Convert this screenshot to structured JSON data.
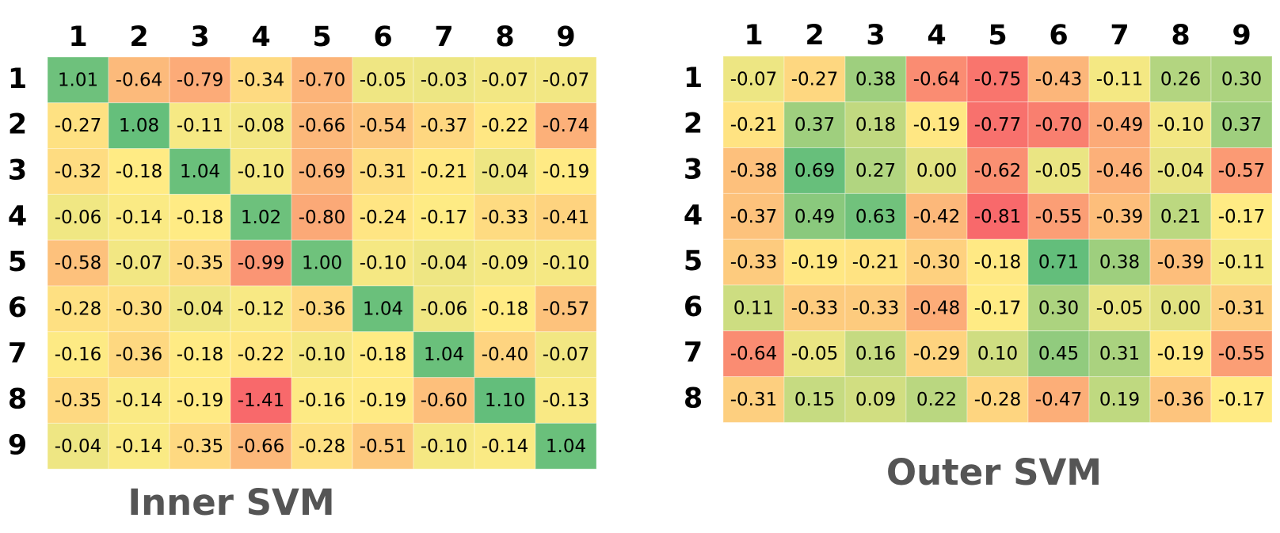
{
  "chart_data": [
    {
      "type": "heatmap",
      "title": "Inner SVM",
      "columns": [
        "1",
        "2",
        "3",
        "4",
        "5",
        "6",
        "7",
        "8",
        "9"
      ],
      "rows": [
        "1",
        "2",
        "3",
        "4",
        "5",
        "6",
        "7",
        "8",
        "9"
      ],
      "values": [
        [
          "1.01",
          "-0.64",
          "-0.79",
          "-0.34",
          "-0.70",
          "-0.05",
          "-0.03",
          "-0.07",
          "-0.07"
        ],
        [
          "-0.27",
          "1.08",
          "-0.11",
          "-0.08",
          "-0.66",
          "-0.54",
          "-0.37",
          "-0.22",
          "-0.74"
        ],
        [
          "-0.32",
          "-0.18",
          "1.04",
          "-0.10",
          "-0.69",
          "-0.31",
          "-0.21",
          "-0.04",
          "-0.19"
        ],
        [
          "-0.06",
          "-0.14",
          "-0.18",
          "1.02",
          "-0.80",
          "-0.24",
          "-0.17",
          "-0.33",
          "-0.41"
        ],
        [
          "-0.58",
          "-0.07",
          "-0.35",
          "-0.99",
          "1.00",
          "-0.10",
          "-0.04",
          "-0.09",
          "-0.10"
        ],
        [
          "-0.28",
          "-0.30",
          "-0.04",
          "-0.12",
          "-0.36",
          "1.04",
          "-0.06",
          "-0.18",
          "-0.57"
        ],
        [
          "-0.16",
          "-0.36",
          "-0.18",
          "-0.22",
          "-0.10",
          "-0.18",
          "1.04",
          "-0.40",
          "-0.07"
        ],
        [
          "-0.35",
          "-0.14",
          "-0.19",
          "-1.41",
          "-0.16",
          "-0.19",
          "-0.60",
          "1.10",
          "-0.13"
        ],
        [
          "-0.04",
          "-0.14",
          "-0.35",
          "-0.66",
          "-0.28",
          "-0.51",
          "-0.10",
          "-0.14",
          "1.04"
        ]
      ]
    },
    {
      "type": "heatmap",
      "title": "Outer SVM",
      "columns": [
        "1",
        "2",
        "3",
        "4",
        "5",
        "6",
        "7",
        "8",
        "9"
      ],
      "rows": [
        "1",
        "2",
        "3",
        "4",
        "5",
        "6",
        "7",
        "8"
      ],
      "values": [
        [
          "-0.07",
          "-0.27",
          "0.38",
          "-0.64",
          "-0.75",
          "-0.43",
          "-0.11",
          "0.26",
          "0.30"
        ],
        [
          "-0.21",
          "0.37",
          "0.18",
          "-0.19",
          "-0.77",
          "-0.70",
          "-0.49",
          "-0.10",
          "0.37"
        ],
        [
          "-0.38",
          "0.69",
          "0.27",
          "0.00",
          "-0.62",
          "-0.05",
          "-0.46",
          "-0.04",
          "-0.57"
        ],
        [
          "-0.37",
          "0.49",
          "0.63",
          "-0.42",
          "-0.81",
          "-0.55",
          "-0.39",
          "0.21",
          "-0.17"
        ],
        [
          "-0.33",
          "-0.19",
          "-0.21",
          "-0.30",
          "-0.18",
          "0.71",
          "0.38",
          "-0.39",
          "-0.11"
        ],
        [
          "0.11",
          "-0.33",
          "-0.33",
          "-0.48",
          "-0.17",
          "0.30",
          "-0.05",
          "0.00",
          "-0.31"
        ],
        [
          "-0.64",
          "-0.05",
          "0.16",
          "-0.29",
          "0.10",
          "0.45",
          "0.31",
          "-0.19",
          "-0.55"
        ],
        [
          "-0.31",
          "0.15",
          "0.09",
          "0.22",
          "-0.28",
          "-0.47",
          "0.19",
          "-0.36",
          "-0.17"
        ]
      ]
    }
  ],
  "colors": {
    "scale_low": "#f8696b",
    "scale_mid": "#ffeb84",
    "scale_high": "#63be7b",
    "title_color": "#555555"
  }
}
